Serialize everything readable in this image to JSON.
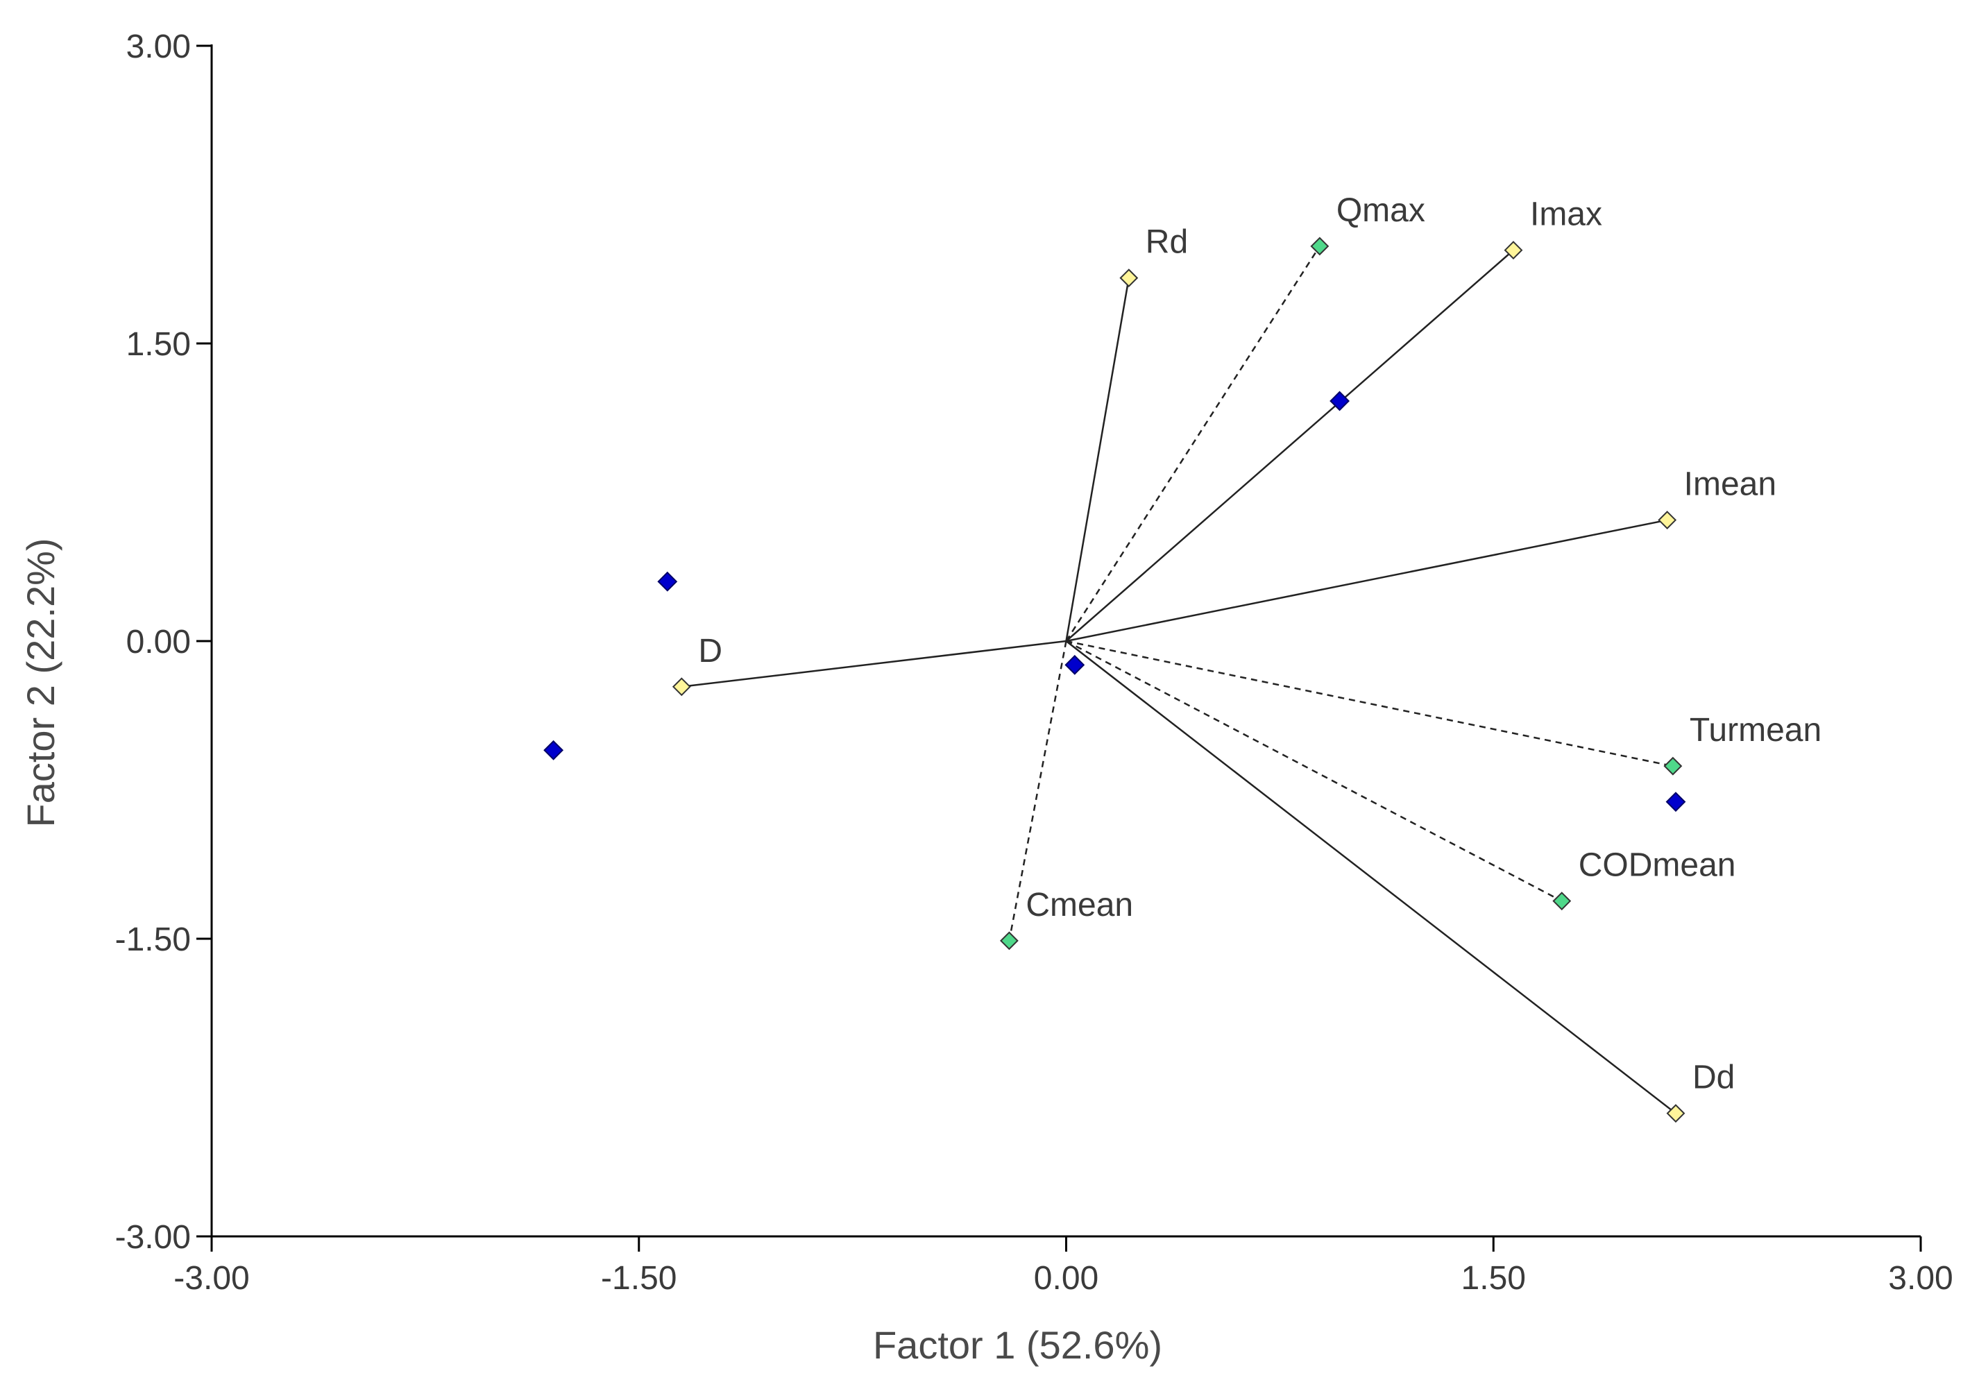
{
  "chart_data": {
    "type": "scatter",
    "title": "",
    "xlabel": "Factor 1 (52.6%)",
    "ylabel": "Factor 2 (22.2%)",
    "xlim": [
      -3.0,
      3.0
    ],
    "ylim": [
      -3.0,
      3.0
    ],
    "x_ticks": [
      -3.0,
      -1.5,
      0.0,
      1.5,
      3.0
    ],
    "y_ticks": [
      -3.0,
      -1.5,
      0.0,
      1.5,
      3.0
    ],
    "x_tick_labels": [
      "-3.00",
      "-1.50",
      "0.00",
      "1.50",
      "3.00"
    ],
    "y_tick_labels": [
      "-3.00",
      "-1.50",
      "0.00",
      "1.50",
      "3.00"
    ],
    "grid": false,
    "legend": "none",
    "vector_origin": [
      0.0,
      0.0
    ],
    "series": [
      {
        "style": "solid-vectors",
        "marker_color": "#fff59a",
        "points": [
          {
            "label": "Rd",
            "x": 0.22,
            "y": 1.83
          },
          {
            "label": "Imax",
            "x": 1.57,
            "y": 1.97
          },
          {
            "label": "Imean",
            "x": 2.11,
            "y": 0.61
          },
          {
            "label": "D",
            "x": -1.35,
            "y": -0.23
          },
          {
            "label": "Dd",
            "x": 2.14,
            "y": -2.38
          }
        ]
      },
      {
        "style": "dashed-vectors",
        "marker_color": "#4fd88a",
        "points": [
          {
            "label": "Qmax",
            "x": 0.89,
            "y": 1.99
          },
          {
            "label": "Turmean",
            "x": 2.13,
            "y": -0.63
          },
          {
            "label": "CODmean",
            "x": 1.74,
            "y": -1.31
          },
          {
            "label": "Cmean",
            "x": -0.2,
            "y": -1.51
          }
        ]
      },
      {
        "style": "points",
        "marker_color": "#0000cc",
        "points": [
          {
            "x": -1.4,
            "y": 0.3
          },
          {
            "x": -1.8,
            "y": -0.55
          },
          {
            "x": 0.03,
            "y": -0.12
          },
          {
            "x": 0.96,
            "y": 1.21
          },
          {
            "x": 2.14,
            "y": -0.81
          }
        ]
      }
    ]
  }
}
